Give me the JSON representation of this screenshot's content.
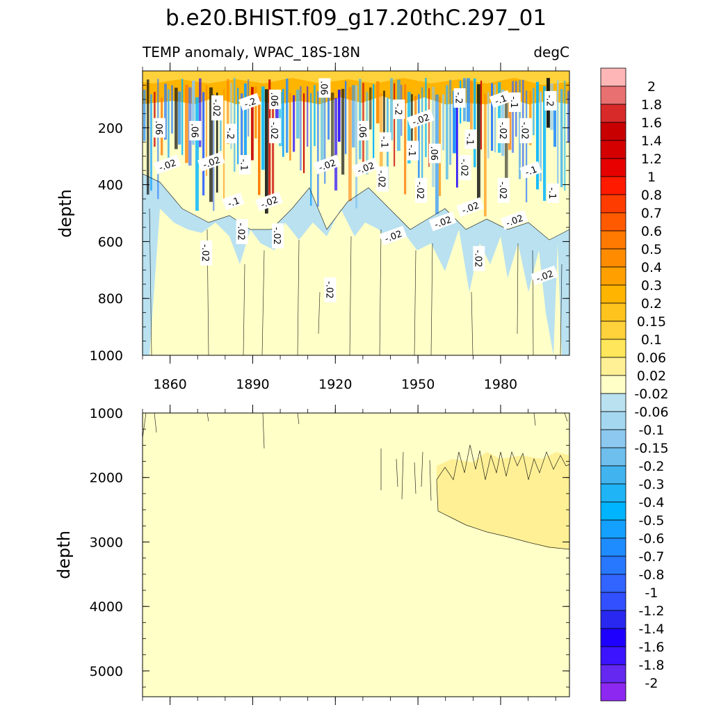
{
  "title": "b.e20.BHIST.f09_g17.20thC.297_01",
  "chart_data": [
    {
      "type": "heatmap",
      "panel": "upper",
      "left_string": "TEMP anomaly, WPAC_18S-18N",
      "right_string": "degC",
      "ylabel": "depth",
      "ylim": [
        0,
        1000
      ],
      "y_reversed": true,
      "yticks": [
        200,
        400,
        600,
        800,
        1000
      ],
      "xlim": [
        1850,
        2005
      ],
      "xticks": [
        1860,
        1890,
        1920,
        1950,
        1980
      ],
      "contour_labels": [
        {
          "text": ".06",
          "x": 1856,
          "y": 200
        },
        {
          "text": "-.02",
          "x": 1859,
          "y": 330
        },
        {
          "text": ".06",
          "x": 1869,
          "y": 210
        },
        {
          "text": "-.02",
          "x": 1877,
          "y": 130
        },
        {
          "text": "-.02",
          "x": 1875,
          "y": 320
        },
        {
          "text": "-.02",
          "x": 1873,
          "y": 640
        },
        {
          "text": "-.2",
          "x": 1882,
          "y": 220
        },
        {
          "text": "-.1",
          "x": 1883,
          "y": 460
        },
        {
          "text": "-.02",
          "x": 1886,
          "y": 565
        },
        {
          "text": "-.1",
          "x": 1887,
          "y": 330
        },
        {
          "text": "-.2",
          "x": 1889,
          "y": 110
        },
        {
          "text": ".06",
          "x": 1898,
          "y": 100
        },
        {
          "text": "-.02",
          "x": 1898,
          "y": 210
        },
        {
          "text": "-.02",
          "x": 1896,
          "y": 460
        },
        {
          "text": "-.02",
          "x": 1899,
          "y": 580
        },
        {
          "text": ".06",
          "x": 1916,
          "y": 60
        },
        {
          "text": "-.02",
          "x": 1917,
          "y": 330
        },
        {
          "text": "-.02",
          "x": 1918,
          "y": 770
        },
        {
          "text": ".06",
          "x": 1930,
          "y": 210
        },
        {
          "text": "-.02",
          "x": 1931,
          "y": 340
        },
        {
          "text": "-.1",
          "x": 1938,
          "y": 250
        },
        {
          "text": "-.02",
          "x": 1937,
          "y": 380
        },
        {
          "text": "-.02",
          "x": 1941,
          "y": 580
        },
        {
          "text": "-.2",
          "x": 1943,
          "y": 135
        },
        {
          "text": "-.1",
          "x": 1948,
          "y": 280
        },
        {
          "text": "-.02",
          "x": 1951,
          "y": 170
        },
        {
          "text": "-.02",
          "x": 1951,
          "y": 420
        },
        {
          "text": ".06",
          "x": 1956,
          "y": 290
        },
        {
          "text": "-.02",
          "x": 1959,
          "y": 530
        },
        {
          "text": "-.2",
          "x": 1965,
          "y": 95
        },
        {
          "text": "-.02",
          "x": 1967,
          "y": 340
        },
        {
          "text": "-.02",
          "x": 1969,
          "y": 480
        },
        {
          "text": "-.1",
          "x": 1969,
          "y": 240
        },
        {
          "text": "-.02",
          "x": 1972,
          "y": 660
        },
        {
          "text": "-.1",
          "x": 1980,
          "y": 100
        },
        {
          "text": "-.02",
          "x": 1981,
          "y": 210
        },
        {
          "text": "-.02",
          "x": 1981,
          "y": 420
        },
        {
          "text": "-.02",
          "x": 1985,
          "y": 525
        },
        {
          "text": "-.1",
          "x": 1985,
          "y": 110
        },
        {
          "text": "-.02",
          "x": 1989,
          "y": 210
        },
        {
          "text": "-.1",
          "x": 1991,
          "y": 350
        },
        {
          "text": "-.1",
          "x": 1999,
          "y": 430
        },
        {
          "text": "-.2",
          "x": 1998,
          "y": 105
        },
        {
          "text": "-.02",
          "x": 1996,
          "y": 720
        }
      ]
    },
    {
      "type": "heatmap",
      "panel": "lower",
      "ylabel": "depth",
      "ylim": [
        1000,
        5400
      ],
      "y_reversed": true,
      "yticks": [
        1000,
        2000,
        3000,
        4000,
        5000
      ],
      "xlim": [
        1850,
        2005
      ],
      "xticks": [
        1860,
        1890,
        1920,
        1950,
        1980
      ],
      "description_regions": [
        {
          "range": "0.02 to 0.06",
          "x_start": 1957,
          "x_end": 2005,
          "depth_top": 1800,
          "depth_bottom_start": 2500,
          "depth_bottom_end": 3100
        }
      ]
    }
  ],
  "colorbar": {
    "labels": [
      "2",
      "1.8",
      "1.6",
      "1.4",
      "1.2",
      "1",
      "0.8",
      "0.7",
      "0.6",
      "0.5",
      "0.4",
      "0.3",
      "0.2",
      "0.15",
      "0.1",
      "0.06",
      "0.02",
      "-0.02",
      "-0.06",
      "-0.1",
      "-0.15",
      "-0.2",
      "-0.3",
      "-0.4",
      "-0.5",
      "-0.6",
      "-0.7",
      "-0.8",
      "-1",
      "-1.2",
      "-1.4",
      "-1.6",
      "-1.8",
      "-2"
    ],
    "colors": [
      "#ffb6b6",
      "#e87070",
      "#d92a2a",
      "#c80000",
      "#d40000",
      "#e60000",
      "#ff1a00",
      "#ff3c00",
      "#ff5a00",
      "#ff7800",
      "#ff8c00",
      "#ffa000",
      "#ffb400",
      "#ffc31e",
      "#ffd23c",
      "#ffe65a",
      "#fff096",
      "#ffffc8",
      "#b9e1f0",
      "#a5d7f0",
      "#8cc8f0",
      "#6ebeee",
      "#41b4f0",
      "#1eb4f5",
      "#00b4ff",
      "#14a0ff",
      "#1e8cff",
      "#2878ff",
      "#3264ff",
      "#3250ff",
      "#2828f0",
      "#1e00ff",
      "#3c14ff",
      "#6428f0",
      "#8c28f0"
    ]
  }
}
